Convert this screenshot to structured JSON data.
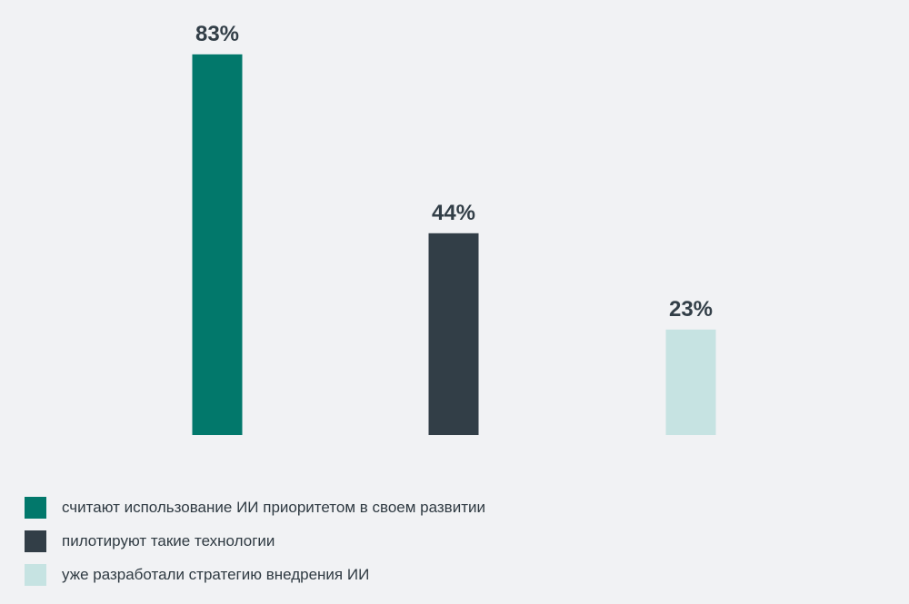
{
  "chart_data": {
    "type": "bar",
    "title": "",
    "xlabel": "",
    "ylabel": "",
    "ylim": [
      0,
      100
    ],
    "grid": false,
    "legend_placement": "bottom-left",
    "categories": [
      "считают использование ИИ приоритетом в своем развитии",
      "пилотируют такие технологии",
      "уже разработали стратегию внедрения ИИ"
    ],
    "values": [
      83,
      44,
      23
    ],
    "value_labels": [
      "83%",
      "44%",
      "23%"
    ],
    "colors": [
      "#02786b",
      "#323e47",
      "#c6e3e2"
    ]
  },
  "label_color": "#323e47",
  "background": "#f1f2f4"
}
